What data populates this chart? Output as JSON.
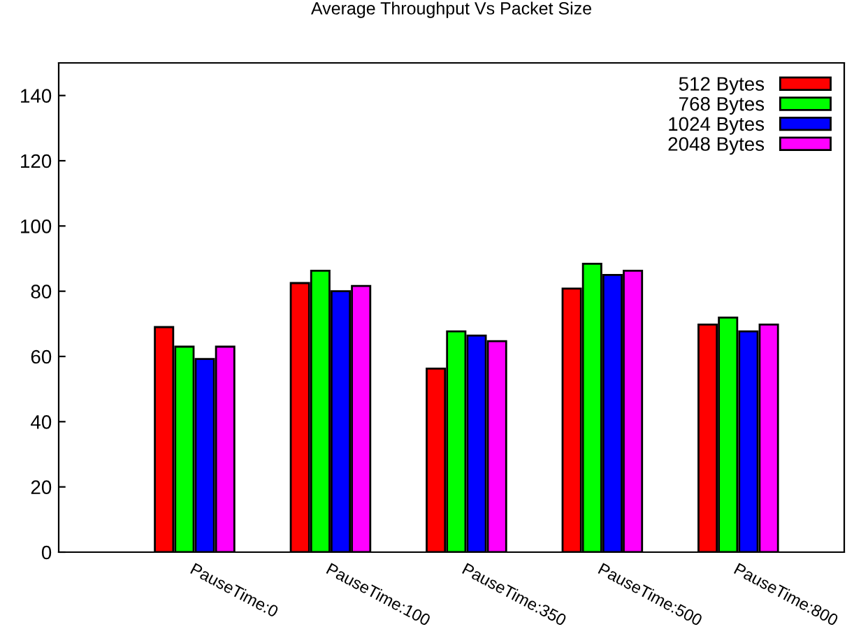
{
  "chart_data": {
    "type": "bar",
    "title": "Average Throughput Vs Packet Size",
    "categories": [
      "PauseTime:0",
      "PauseTime:100",
      "PauseTime:350",
      "PauseTime:500",
      "PauseTime:800"
    ],
    "series": [
      {
        "name": "512 Bytes",
        "color": "#ff0000",
        "values": [
          69,
          82.5,
          56.3,
          80.8,
          69.8
        ]
      },
      {
        "name": "768 Bytes",
        "color": "#00ff00",
        "values": [
          63,
          86.3,
          67.7,
          88.4,
          71.9
        ]
      },
      {
        "name": "1024 Bytes",
        "color": "#0000ff",
        "values": [
          59.2,
          80,
          66.4,
          85,
          67.7
        ]
      },
      {
        "name": "2048 Bytes",
        "color": "#ff00ff",
        "values": [
          63,
          81.6,
          64.7,
          86.3,
          69.8
        ]
      }
    ],
    "ylim": [
      0,
      150
    ],
    "yticks": [
      0,
      20,
      40,
      60,
      80,
      100,
      120,
      140
    ],
    "grid": false,
    "legend": "top right"
  }
}
